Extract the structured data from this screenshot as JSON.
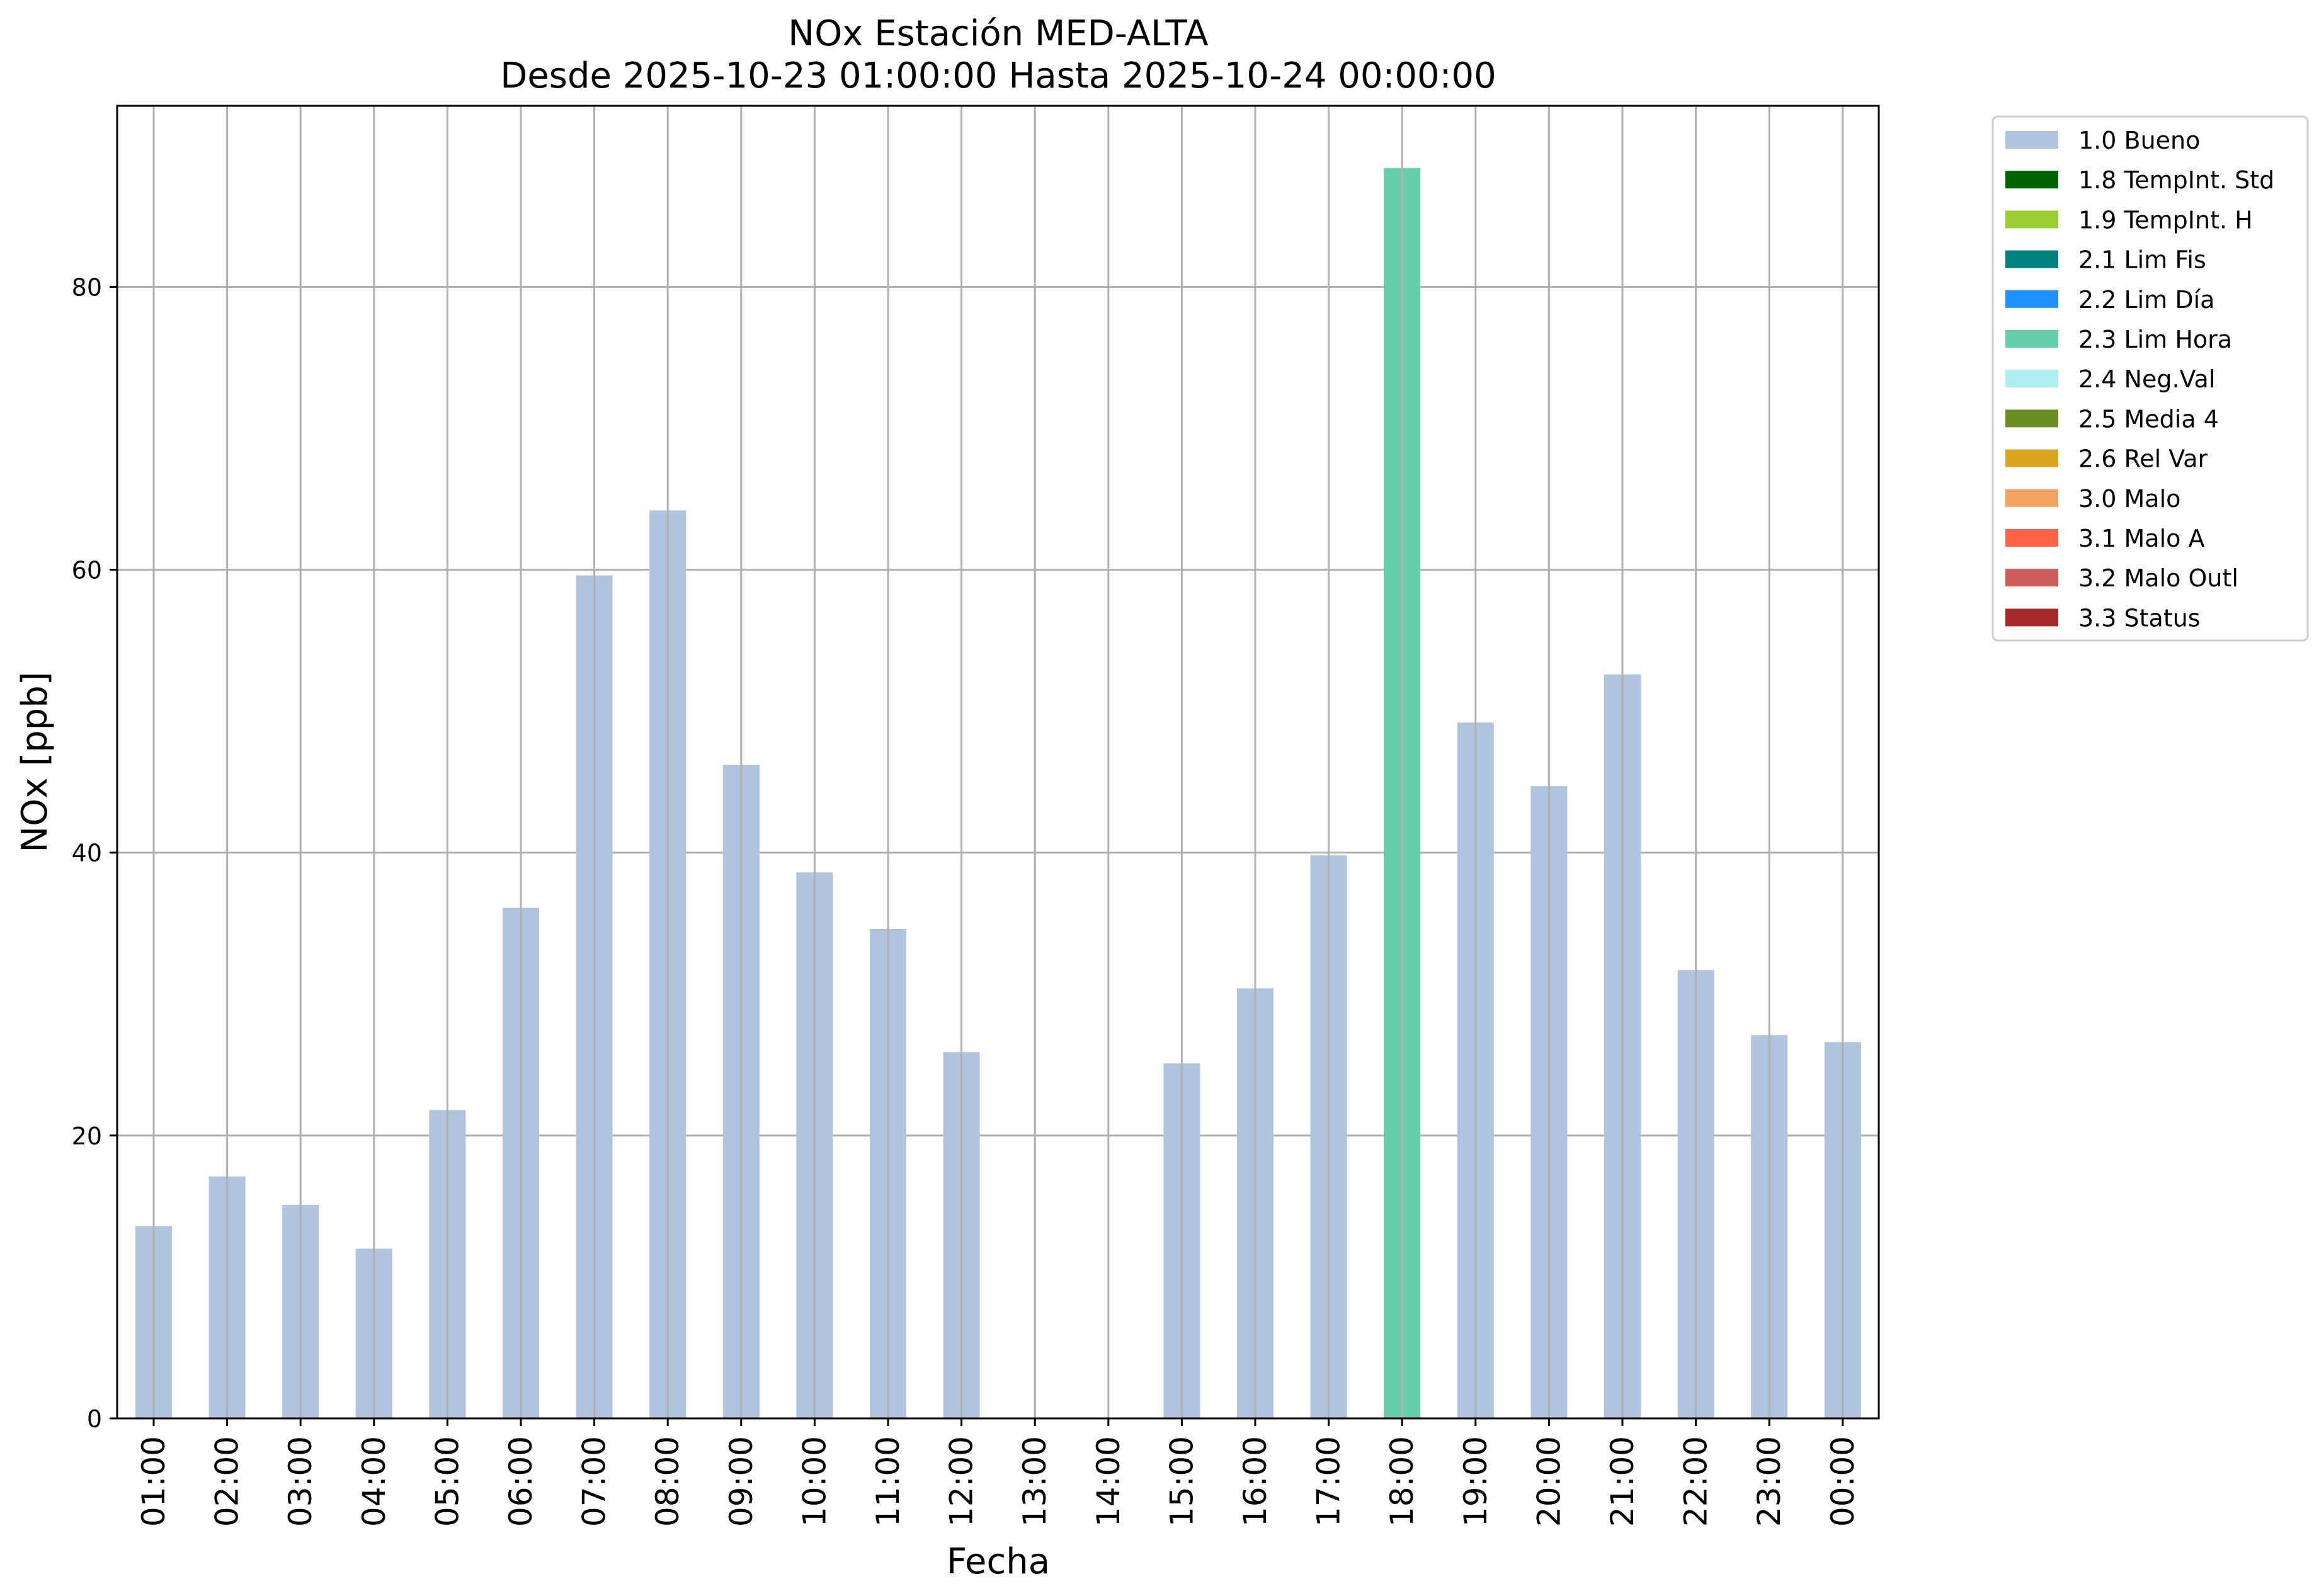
{
  "chart_data": {
    "type": "bar",
    "title": "NOx Estación MED-ALTA",
    "subtitle": "Desde 2025-10-23 01:00:00 Hasta 2025-10-24 00:00:00",
    "xlabel": "Fecha",
    "ylabel": "NOx [ppb]",
    "ylim": [
      0,
      92.8
    ],
    "yticks": [
      0,
      20,
      40,
      60,
      80
    ],
    "grid": true,
    "legend_position": "outside top-right",
    "categories": [
      "01:00",
      "02:00",
      "03:00",
      "04:00",
      "05:00",
      "06:00",
      "07:00",
      "08:00",
      "09:00",
      "10:00",
      "11:00",
      "12:00",
      "13:00",
      "14:00",
      "15:00",
      "16:00",
      "17:00",
      "18:00",
      "19:00",
      "20:00",
      "21:00",
      "22:00",
      "23:00",
      "00:00"
    ],
    "values": [
      13.6,
      17.1,
      15.1,
      12.0,
      21.8,
      36.1,
      59.6,
      64.2,
      46.2,
      38.6,
      34.6,
      25.9,
      null,
      null,
      25.1,
      30.4,
      39.8,
      88.4,
      49.2,
      44.7,
      52.6,
      31.7,
      27.1,
      26.6
    ],
    "flags": [
      "1.0 Bueno",
      "1.0 Bueno",
      "1.0 Bueno",
      "1.0 Bueno",
      "1.0 Bueno",
      "1.0 Bueno",
      "1.0 Bueno",
      "1.0 Bueno",
      "1.0 Bueno",
      "1.0 Bueno",
      "1.0 Bueno",
      "1.0 Bueno",
      null,
      null,
      "1.0 Bueno",
      "1.0 Bueno",
      "1.0 Bueno",
      "2.3 Lim Hora",
      "1.0 Bueno",
      "1.0 Bueno",
      "1.0 Bueno",
      "1.0 Bueno",
      "1.0 Bueno",
      "1.0 Bueno"
    ],
    "legend": [
      {
        "label": "1.0 Bueno",
        "color": "#B0C4DE"
      },
      {
        "label": "1.8 TempInt. Std",
        "color": "#006400"
      },
      {
        "label": "1.9 TempInt. H",
        "color": "#9ACD32"
      },
      {
        "label": "2.1 Lim Fis",
        "color": "#008080"
      },
      {
        "label": "2.2 Lim Día",
        "color": "#1E90FF"
      },
      {
        "label": "2.3 Lim Hora",
        "color": "#66CDAA"
      },
      {
        "label": "2.4 Neg.Val",
        "color": "#AFEEEE"
      },
      {
        "label": "2.5 Media 4",
        "color": "#6B8E23"
      },
      {
        "label": "2.6 Rel Var",
        "color": "#DAA520"
      },
      {
        "label": "3.0 Malo",
        "color": "#F4A460"
      },
      {
        "label": "3.1 Malo A",
        "color": "#FF6347"
      },
      {
        "label": "3.2 Malo Outl",
        "color": "#CD5C5C"
      },
      {
        "label": "3.3 Status",
        "color": "#A52A2A"
      }
    ]
  }
}
